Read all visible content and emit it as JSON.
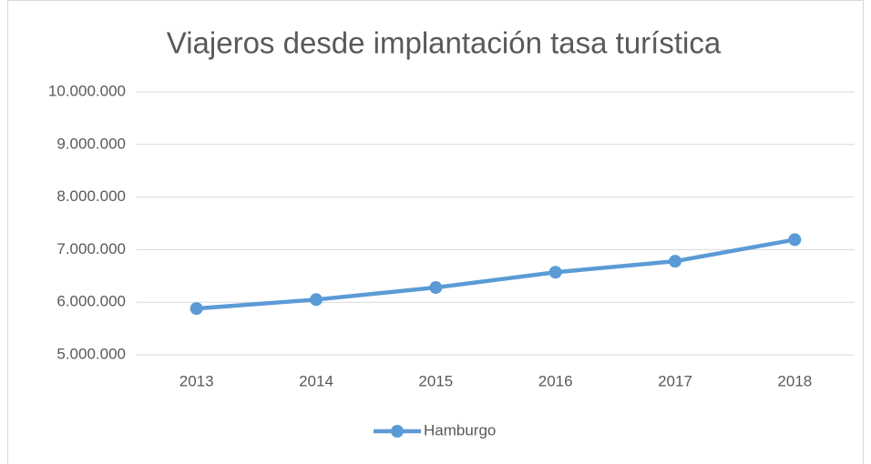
{
  "chart_data": {
    "type": "line",
    "title": "Viajeros desde implantación tasa turística",
    "categories": [
      "2013",
      "2014",
      "2015",
      "2016",
      "2017",
      "2018"
    ],
    "series": [
      {
        "name": "Hamburgo",
        "color": "#5b9bd5",
        "values": [
          5880000,
          6050000,
          6280000,
          6570000,
          6780000,
          7190000
        ]
      }
    ],
    "ylim": [
      5000000,
      10000000
    ],
    "yticks": [
      {
        "value": 5000000,
        "label": "5.000.000"
      },
      {
        "value": 6000000,
        "label": "6.000.000"
      },
      {
        "value": 7000000,
        "label": "7.000.000"
      },
      {
        "value": 8000000,
        "label": "8.000.000"
      },
      {
        "value": 9000000,
        "label": "9.000.000"
      },
      {
        "value": 10000000,
        "label": "10.000.000"
      }
    ],
    "grid": true,
    "legend": "bottom"
  }
}
